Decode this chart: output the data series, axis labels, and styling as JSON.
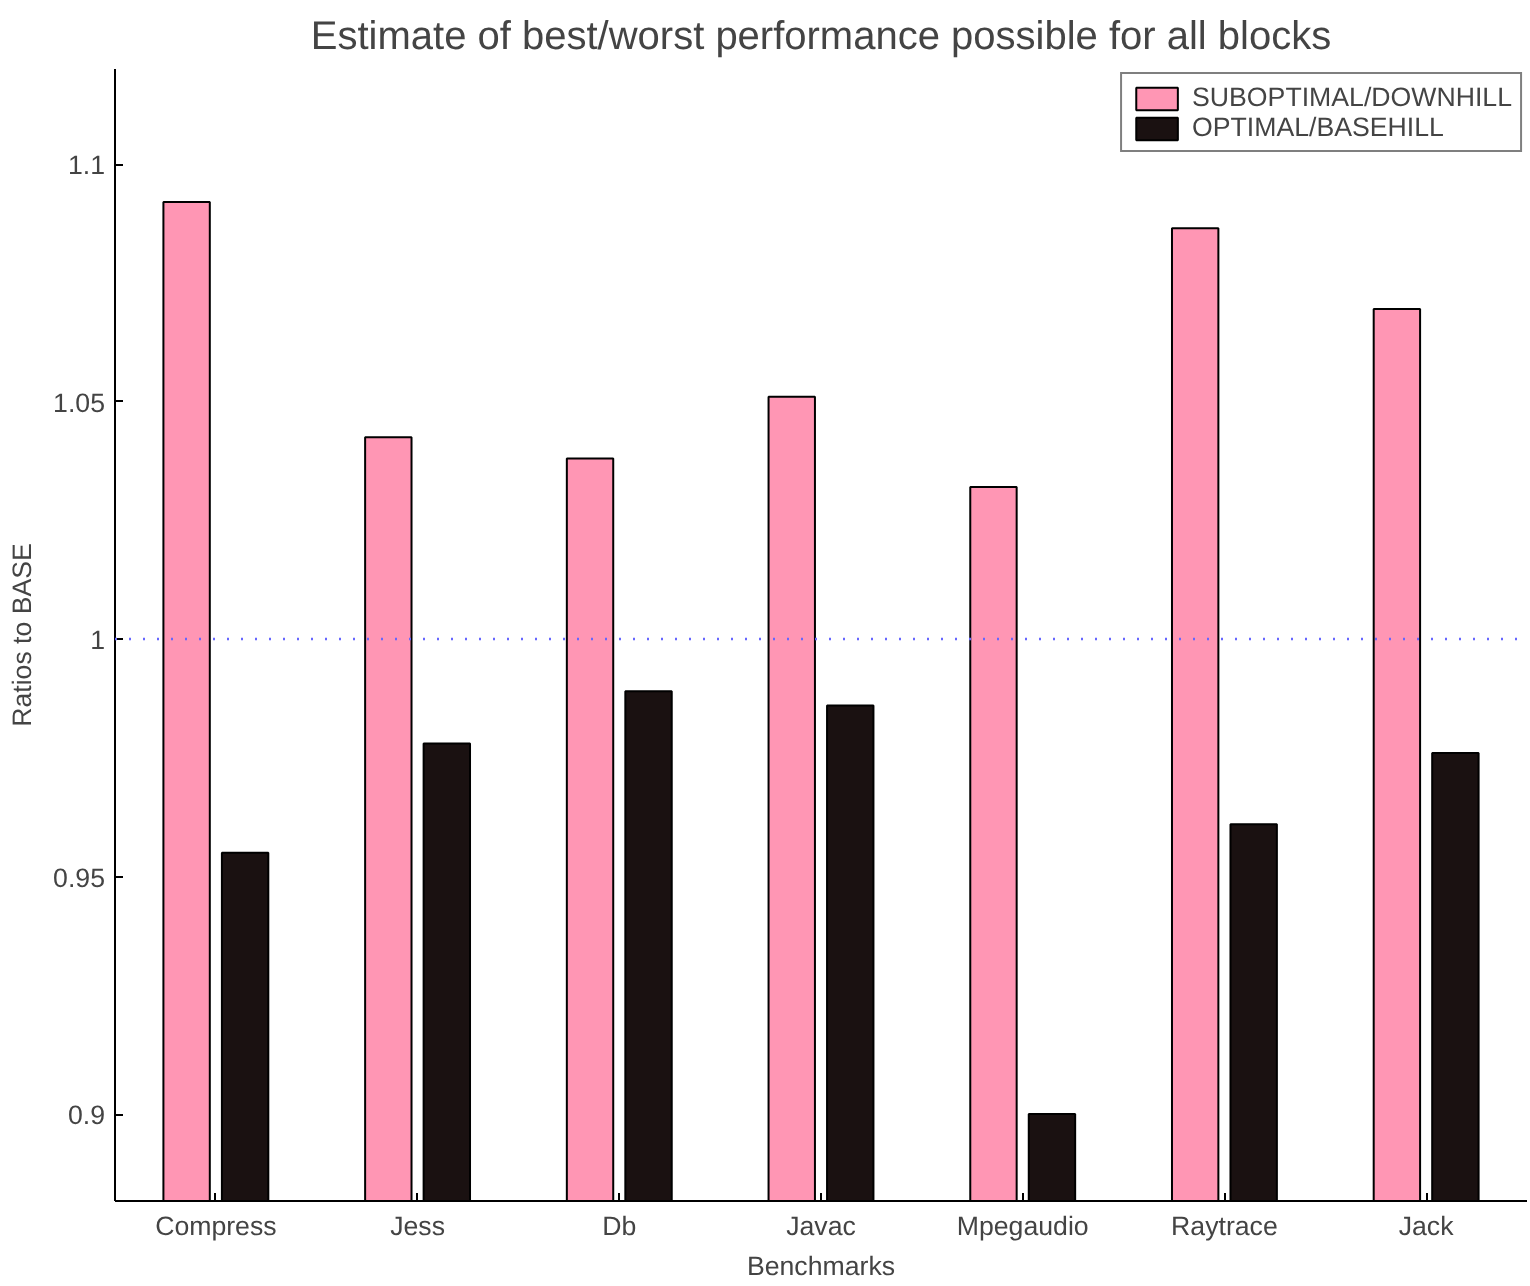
{
  "chart_data": {
    "type": "bar",
    "title": "Estimate of best/worst performance possible for all blocks",
    "xlabel": "Benchmarks",
    "ylabel": "Ratios to BASE",
    "categories": [
      "Compress",
      "Jess",
      "Db",
      "Javac",
      "Mpegaudio",
      "Raytrace",
      "Jack"
    ],
    "series": [
      {
        "name": "SUBOPTIMAL/DOWNHILL",
        "color": "#ff96b4",
        "values": [
          1.092,
          1.0425,
          1.038,
          1.051,
          1.032,
          1.0865,
          1.0695
        ]
      },
      {
        "name": "OPTIMAL/BASEHILL",
        "color": "#1a1111",
        "values": [
          0.955,
          0.978,
          0.989,
          0.986,
          0.9,
          0.961,
          0.976
        ]
      }
    ],
    "ylim": [
      0.8817,
      1.12
    ],
    "yticks": [
      0.9,
      0.95,
      1,
      1.05,
      1.1
    ],
    "ref_lines": [
      {
        "axis": "y",
        "value": 1,
        "color": "#6666ff",
        "line_style": "dotted"
      }
    ],
    "grid": false,
    "legend": "top right"
  }
}
